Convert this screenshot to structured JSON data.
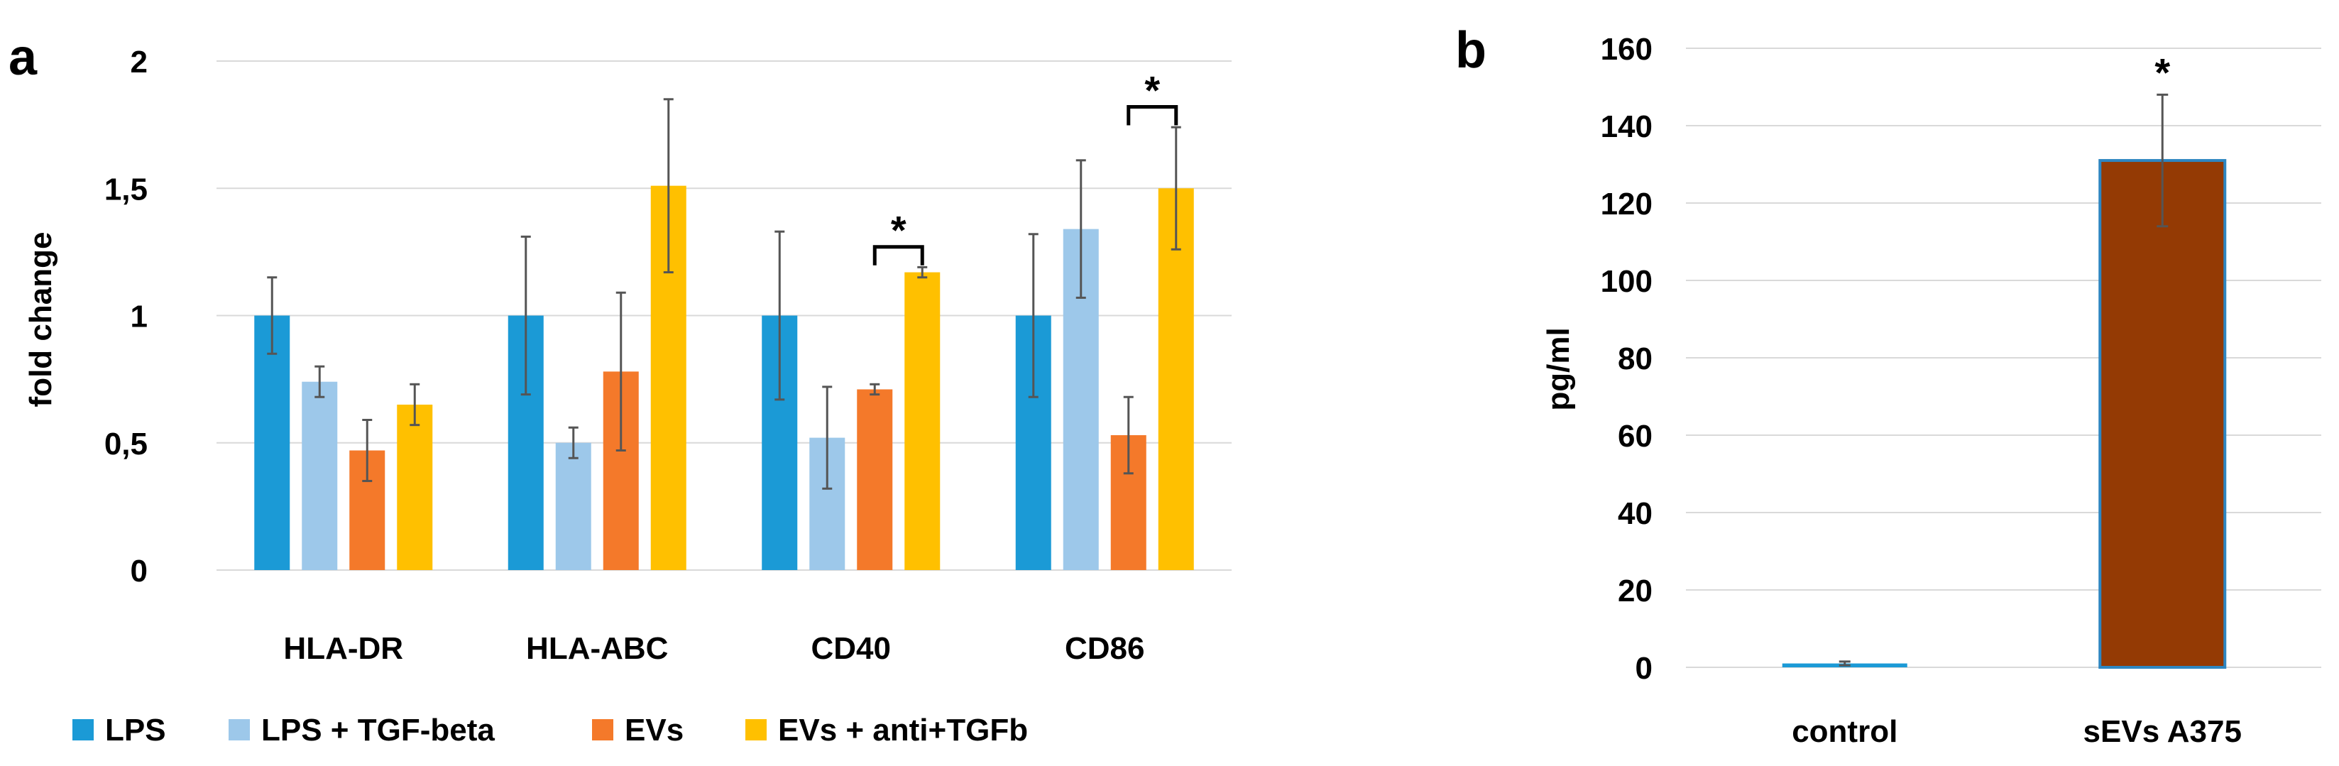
{
  "colors": {
    "LPS": "#1b9ad6",
    "LPS + TGF-beta": "#9dc8ea",
    "EVs": "#f4792a",
    "EVs + anti+TGFb": "#ffc000",
    "sEVs_fill": "#943a04",
    "sEVs_stroke": "#2e86c1",
    "control": "#1b9ad6"
  },
  "chart_data": [
    {
      "panel": "a",
      "type": "bar",
      "title": "",
      "xlabel": "",
      "ylabel": "fold change",
      "ylim": [
        0,
        2
      ],
      "yticks": [
        0,
        0.5,
        1,
        1.5,
        2
      ],
      "ytick_labels": [
        "0",
        "0,5",
        "1",
        "1,5",
        "2"
      ],
      "categories": [
        "HLA-DR",
        "HLA-ABC",
        "CD40",
        "CD86"
      ],
      "legend_position": "bottom",
      "series": [
        {
          "name": "LPS",
          "values": [
            1.0,
            1.0,
            1.0,
            1.0
          ],
          "errors": [
            0.15,
            0.31,
            0.33,
            0.32
          ]
        },
        {
          "name": "LPS + TGF-beta",
          "values": [
            0.74,
            0.5,
            0.52,
            1.34
          ],
          "errors": [
            0.06,
            0.06,
            0.2,
            0.27
          ]
        },
        {
          "name": "EVs",
          "values": [
            0.47,
            0.78,
            0.71,
            0.53
          ],
          "errors": [
            0.12,
            0.31,
            0.02,
            0.15
          ]
        },
        {
          "name": "EVs + anti+TGFb",
          "values": [
            0.65,
            1.51,
            1.17,
            1.5
          ],
          "errors": [
            0.08,
            0.34,
            0.02,
            0.24
          ]
        }
      ],
      "annotations": [
        {
          "text": "*",
          "category_index": 2,
          "from_series": 2,
          "to_series": 3
        },
        {
          "text": "*",
          "category_index": 3,
          "from_series": 2,
          "to_series": 3
        }
      ]
    },
    {
      "panel": "b",
      "type": "bar",
      "title": "",
      "xlabel": "",
      "ylabel": "pg/ml",
      "ylim": [
        0,
        160
      ],
      "yticks": [
        0,
        20,
        40,
        60,
        80,
        100,
        120,
        140,
        160
      ],
      "categories": [
        "control",
        "sEVs A375"
      ],
      "values": [
        1,
        131
      ],
      "errors": [
        0.5,
        17
      ],
      "annotations": [
        {
          "text": "*",
          "category_index": 1
        }
      ]
    }
  ]
}
